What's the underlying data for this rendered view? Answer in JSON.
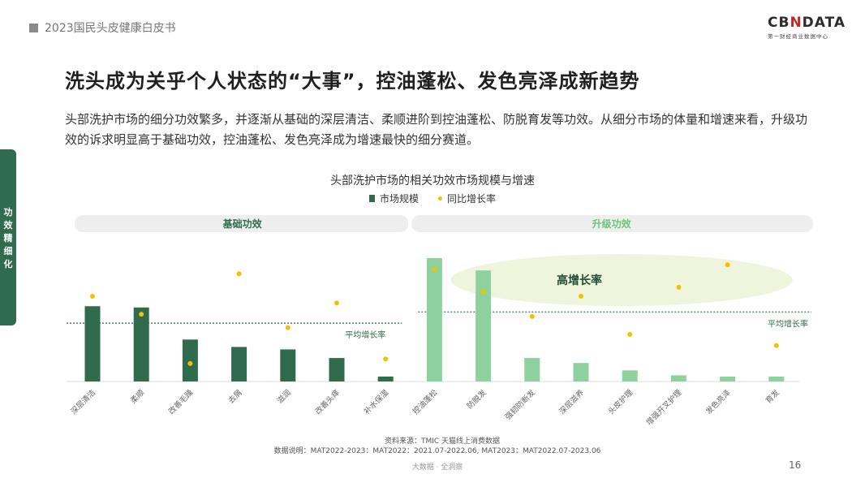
{
  "header": {
    "report_title": "2023国民头皮健康白皮书"
  },
  "logo": {
    "main_prefix": "CB",
    "main_x": "N",
    "main_suffix": "DATA",
    "sub": "第一财经商业数据中心"
  },
  "slide": {
    "title": "洗头成为关乎个人状态的“大事”，控油蓬松、发色亮泽成新趋势",
    "description": "头部洗护市场的细分功效繁多，并逐渐从基础的深层清洁、柔顺进阶到控油蓬松、防脱育发等功效。从细分市场的体量和增速来看，升级功效的诉求明显高于基础功效，控油蓬松、发色亮泽成为增速最快的细分赛道。",
    "side_tab": [
      "功",
      "效",
      "精",
      "细",
      "化"
    ]
  },
  "chart_data": {
    "type": "bar",
    "title": "头部洗护市场的相关功效市场规模与增速",
    "legend": [
      "市场规模",
      "同比增长率"
    ],
    "groups": [
      {
        "label": "基础功效",
        "avg_label": "平均增长率"
      },
      {
        "label": "升级功效",
        "avg_label": "平均增长率"
      }
    ],
    "highlight_label": "高增长率",
    "categories": [
      "深层清洁",
      "柔顺",
      "改善毛躁",
      "去屑",
      "滋润",
      "改善头痒",
      "补水保湿",
      "控油蓬松",
      "防脱发",
      "强韧防断发",
      "深层滋养",
      "头皮护理",
      "增强开叉护理",
      "发色亮泽",
      "育发"
    ],
    "category_group": [
      0,
      0,
      0,
      0,
      0,
      0,
      0,
      1,
      1,
      1,
      1,
      1,
      1,
      1,
      1
    ],
    "series": [
      {
        "name": "市场规模",
        "values": [
          61,
          60,
          34,
          28,
          26,
          19,
          4,
          100,
          90,
          19,
          15,
          9,
          5,
          4,
          4
        ]
      },
      {
        "name": "同比增长率",
        "values": [
          38,
          30,
          8,
          48,
          24,
          35,
          10,
          50,
          40,
          29,
          38,
          21,
          42,
          52,
          16
        ]
      }
    ],
    "averages": [
      26,
      31
    ],
    "size_ylim": [
      0,
      100
    ],
    "rate_ylim": [
      0,
      55
    ],
    "colors": {
      "basic": "#2f6b4c",
      "upgrade": "#8fd19e",
      "rate_dot": "#f2c200",
      "band": "#eeeeee",
      "highlight": "#eef5dc"
    }
  },
  "source": "资料来源：TMIC 天猫线上消费数据",
  "note": "数据说明：MAT2022-2023：MAT2022：2021.07-2022.06, MAT2023：MAT2022.07-2023.06",
  "footer": "大数据 · 全洞察",
  "page_number": "16"
}
